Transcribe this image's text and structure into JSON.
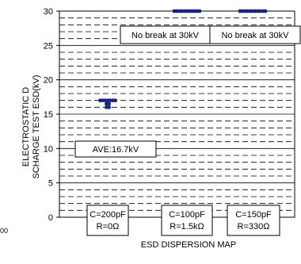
{
  "chart_data": {
    "type": "scatter",
    "title": "ESD DISPERSION MAP",
    "ylabel": "ELECTROSTATIC DISCHARGE TEST ESD(kV)",
    "xlabel": "",
    "ylim": [
      0,
      30
    ],
    "yticks": [
      0,
      5,
      10,
      15,
      20,
      25,
      30
    ],
    "minor_grid_step": 1,
    "grid": true,
    "categories": [
      "C=200pF\nR=0Ω",
      "C=100pF\nR=1.5kΩ",
      "C=150pF\nR=330Ω"
    ],
    "series": [
      {
        "category": 0,
        "values": [
          16,
          16,
          16.5,
          16.5,
          17,
          17,
          17,
          17,
          17,
          17,
          17
        ]
      },
      {
        "category": 1,
        "values": [
          30,
          30,
          30,
          30,
          30,
          30,
          30,
          30,
          30,
          30,
          30
        ]
      },
      {
        "category": 2,
        "values": [
          30,
          30,
          30,
          30,
          30,
          30,
          30,
          30,
          30,
          30,
          30
        ]
      }
    ],
    "annotations": [
      {
        "text": "No break at 30kV",
        "category": 1
      },
      {
        "text": "No break at 30kV",
        "category": 2
      },
      {
        "text": "AVE:16.7kV",
        "category": 0
      }
    ],
    "marker_color": "#1a237e"
  },
  "stray_text": "00"
}
